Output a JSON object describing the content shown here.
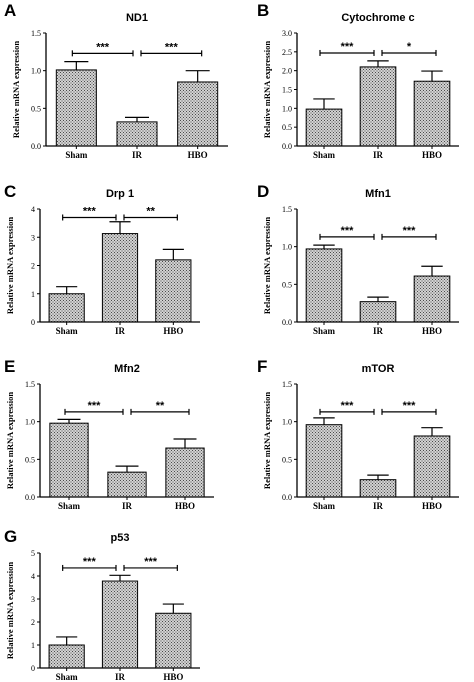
{
  "chart_data": [
    {
      "letter": "A",
      "title": "ND1",
      "type": "bar",
      "categories": [
        "Sham",
        "IR",
        "HBO"
      ],
      "values": [
        1.01,
        0.32,
        0.85
      ],
      "errors": [
        0.11,
        0.06,
        0.15
      ],
      "ylabel": "Relative mRNA expression",
      "ylim": [
        0,
        1.5
      ],
      "yticks": [
        "0.0",
        "0.5",
        "1.0",
        "1.5"
      ],
      "significance": [
        {
          "from": 0,
          "to": 1,
          "label": "***",
          "y": 1.23
        },
        {
          "from": 1,
          "to": 2,
          "label": "***",
          "y": 1.23
        }
      ]
    },
    {
      "letter": "B",
      "title": "Cytochrome c",
      "type": "bar",
      "categories": [
        "Sham",
        "IR",
        "HBO"
      ],
      "values": [
        0.98,
        2.1,
        1.72
      ],
      "errors": [
        0.27,
        0.16,
        0.27
      ],
      "ylabel": "Relative mRNA expression",
      "ylim": [
        0,
        3.0
      ],
      "yticks": [
        "0.0",
        "0.5",
        "1.0",
        "1.5",
        "2.0",
        "2.5",
        "3.0"
      ],
      "significance": [
        {
          "from": 0,
          "to": 1,
          "label": "***",
          "y": 2.47
        },
        {
          "from": 1,
          "to": 2,
          "label": "*",
          "y": 2.47
        }
      ]
    },
    {
      "letter": "C",
      "title": "Drp 1",
      "type": "bar",
      "categories": [
        "Sham",
        "IR",
        "HBO"
      ],
      "values": [
        1.0,
        3.13,
        2.2
      ],
      "errors": [
        0.25,
        0.42,
        0.37
      ],
      "ylabel": "Relative mRNA expression",
      "ylim": [
        0,
        4
      ],
      "yticks": [
        "0",
        "1",
        "2",
        "3",
        "4"
      ],
      "significance": [
        {
          "from": 0,
          "to": 1,
          "label": "***",
          "y": 3.7
        },
        {
          "from": 1,
          "to": 2,
          "label": "**",
          "y": 3.7
        }
      ]
    },
    {
      "letter": "D",
      "title": "Mfn1",
      "type": "bar",
      "categories": [
        "Sham",
        "IR",
        "HBO"
      ],
      "values": [
        0.97,
        0.27,
        0.61
      ],
      "errors": [
        0.05,
        0.06,
        0.13
      ],
      "ylabel": "Relative mRNA expression",
      "ylim": [
        0,
        1.5
      ],
      "yticks": [
        "0.0",
        "0.5",
        "1.0",
        "1.5"
      ],
      "significance": [
        {
          "from": 0,
          "to": 1,
          "label": "***",
          "y": 1.13
        },
        {
          "from": 1,
          "to": 2,
          "label": "***",
          "y": 1.13
        }
      ]
    },
    {
      "letter": "E",
      "title": "Mfn2",
      "type": "bar",
      "categories": [
        "Sham",
        "IR",
        "HBO"
      ],
      "values": [
        0.98,
        0.33,
        0.65
      ],
      "errors": [
        0.05,
        0.08,
        0.12
      ],
      "ylabel": "Relative mRNA expression",
      "ylim": [
        0,
        1.5
      ],
      "yticks": [
        "0.0",
        "0.5",
        "1.0",
        "1.5"
      ],
      "significance": [
        {
          "from": 0,
          "to": 1,
          "label": "***",
          "y": 1.13
        },
        {
          "from": 1,
          "to": 2,
          "label": "**",
          "y": 1.13
        }
      ]
    },
    {
      "letter": "F",
      "title": "mTOR",
      "type": "bar",
      "categories": [
        "Sham",
        "IR",
        "HBO"
      ],
      "values": [
        0.96,
        0.23,
        0.81
      ],
      "errors": [
        0.09,
        0.06,
        0.11
      ],
      "ylabel": "Relative mRNA expression",
      "ylim": [
        0,
        1.5
      ],
      "yticks": [
        "0.0",
        "0.5",
        "1.0",
        "1.5"
      ],
      "significance": [
        {
          "from": 0,
          "to": 1,
          "label": "***",
          "y": 1.13
        },
        {
          "from": 1,
          "to": 2,
          "label": "***",
          "y": 1.13
        }
      ]
    },
    {
      "letter": "G",
      "title": "p53",
      "type": "bar",
      "categories": [
        "Sham",
        "IR",
        "HBO"
      ],
      "values": [
        1.0,
        3.78,
        2.38
      ],
      "errors": [
        0.35,
        0.25,
        0.4
      ],
      "ylabel": "Relative mRNA expression",
      "ylim": [
        0,
        5
      ],
      "yticks": [
        "0",
        "1",
        "2",
        "3",
        "4",
        "5"
      ],
      "significance": [
        {
          "from": 0,
          "to": 1,
          "label": "***",
          "y": 4.35
        },
        {
          "from": 1,
          "to": 2,
          "label": "***",
          "y": 4.35
        }
      ]
    }
  ]
}
